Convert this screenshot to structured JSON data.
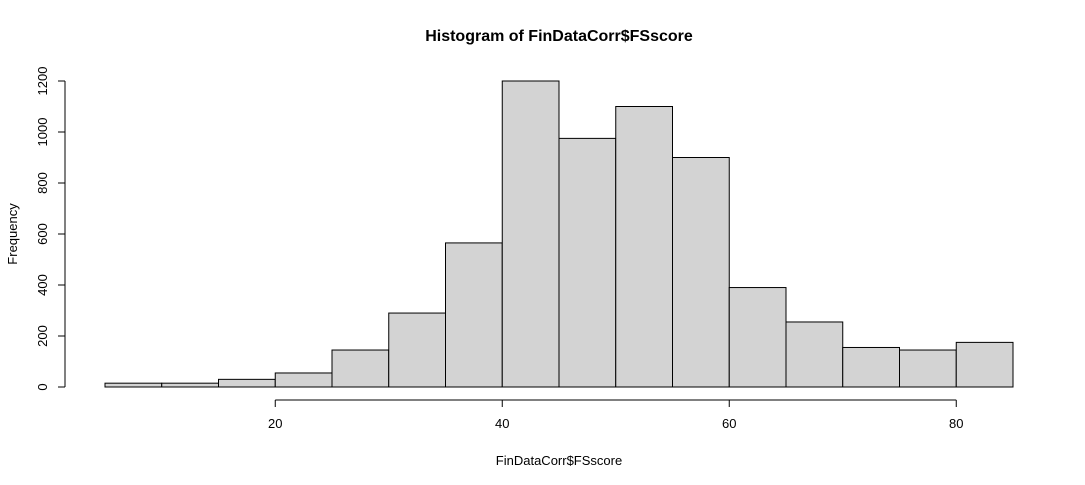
{
  "chart_data": {
    "type": "bar",
    "title": "Histogram of FinDataCorr$FSscore",
    "xlabel": "FinDataCorr$FSscore",
    "ylabel": "Frequency",
    "xlim": [
      5,
      85
    ],
    "ylim": [
      0,
      1200
    ],
    "x_ticks": [
      20,
      40,
      60,
      80
    ],
    "y_ticks": [
      0,
      200,
      400,
      600,
      800,
      1000,
      1200
    ],
    "bins": [
      {
        "start": 5,
        "end": 10,
        "count": 15
      },
      {
        "start": 10,
        "end": 15,
        "count": 15
      },
      {
        "start": 15,
        "end": 20,
        "count": 30
      },
      {
        "start": 20,
        "end": 25,
        "count": 55
      },
      {
        "start": 25,
        "end": 30,
        "count": 145
      },
      {
        "start": 30,
        "end": 35,
        "count": 290
      },
      {
        "start": 35,
        "end": 40,
        "count": 565
      },
      {
        "start": 40,
        "end": 45,
        "count": 1200
      },
      {
        "start": 45,
        "end": 50,
        "count": 975
      },
      {
        "start": 50,
        "end": 55,
        "count": 1100
      },
      {
        "start": 55,
        "end": 60,
        "count": 900
      },
      {
        "start": 60,
        "end": 65,
        "count": 390
      },
      {
        "start": 65,
        "end": 70,
        "count": 255
      },
      {
        "start": 70,
        "end": 75,
        "count": 155
      },
      {
        "start": 75,
        "end": 80,
        "count": 145
      },
      {
        "start": 80,
        "end": 85,
        "count": 175
      }
    ],
    "grid": false,
    "colors": {
      "bar_fill": "#d3d3d3",
      "bar_stroke": "#000000"
    }
  }
}
